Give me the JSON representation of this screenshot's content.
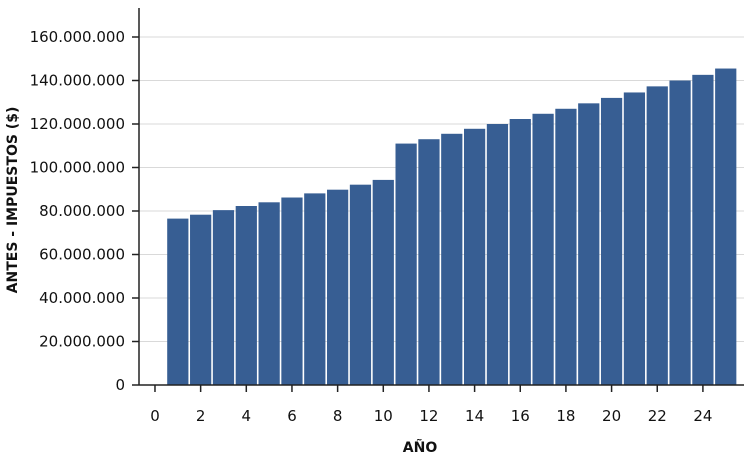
{
  "chart_data": {
    "type": "bar",
    "xlabel": "AÑO",
    "ylabel": "ANTES - IMPUESTOS ($)",
    "xlim": [
      -0.7,
      25.8
    ],
    "ylim": [
      0,
      160000000
    ],
    "grid": true,
    "bar_color": "#375e93",
    "yticks": [
      0,
      20000000,
      40000000,
      60000000,
      80000000,
      100000000,
      120000000,
      140000000,
      160000000
    ],
    "ytick_labels": [
      "0",
      "20.000.000",
      "40.000.000",
      "60.000.000",
      "80.000.000",
      "100.000.000",
      "120.000.000",
      "140.000.000",
      "160.000.000"
    ],
    "xticks": [
      0,
      2,
      4,
      6,
      8,
      10,
      12,
      14,
      16,
      18,
      20,
      22,
      24
    ],
    "xtick_labels": [
      "0",
      "2",
      "4",
      "6",
      "8",
      "10",
      "12",
      "14",
      "16",
      "18",
      "20",
      "22",
      "24"
    ],
    "x": [
      1,
      2,
      3,
      4,
      5,
      6,
      7,
      8,
      9,
      10,
      11,
      12,
      13,
      14,
      15,
      16,
      17,
      18,
      19,
      20,
      21,
      22,
      23,
      24,
      25
    ],
    "values": [
      76500000,
      78300000,
      80400000,
      82300000,
      84000000,
      86200000,
      88100000,
      89800000,
      92100000,
      94300000,
      111000000,
      113000000,
      115500000,
      117800000,
      120000000,
      122300000,
      124700000,
      127000000,
      129500000,
      132000000,
      134500000,
      137300000,
      140000000,
      142600000,
      145500000
    ]
  }
}
